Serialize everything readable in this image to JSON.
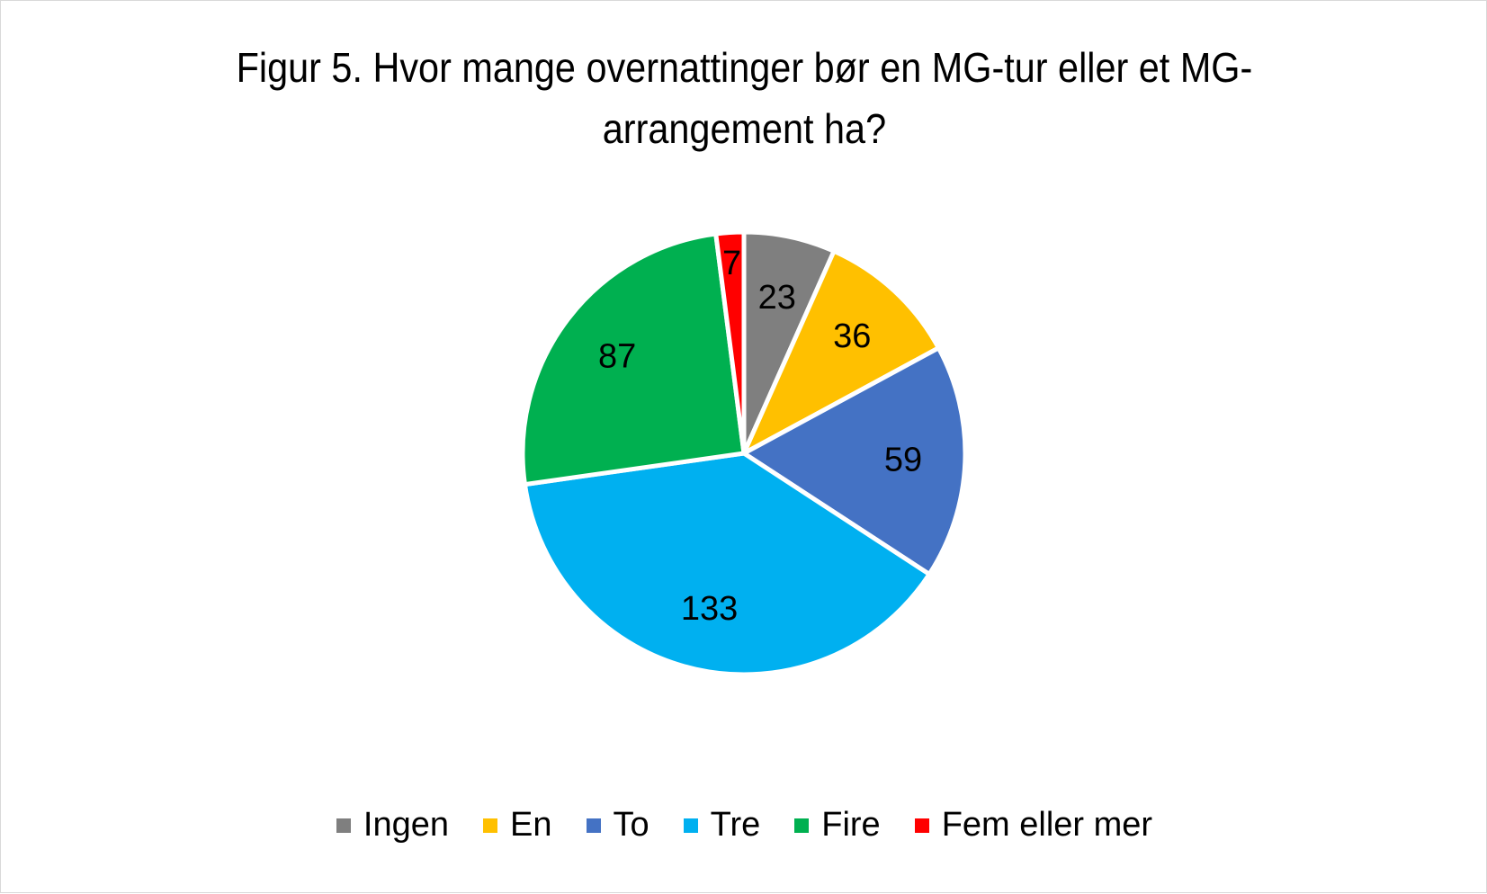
{
  "chart_data": {
    "type": "pie",
    "title_lines": [
      "Figur 5. Hvor mange overnattinger bør en MG-tur eller et MG-",
      "arrangement ha?"
    ],
    "categories": [
      "Ingen",
      "En",
      "To",
      "Tre",
      "Fire",
      "Fem eller mer"
    ],
    "values": [
      23,
      36,
      59,
      133,
      87,
      7
    ],
    "colors": [
      "#7f7f7f",
      "#ffc000",
      "#4472c4",
      "#00b0f0",
      "#00b050",
      "#ff0000"
    ],
    "data_labels": [
      "23",
      "36",
      "59",
      "133",
      "87",
      "7"
    ],
    "legend_position": "bottom"
  }
}
